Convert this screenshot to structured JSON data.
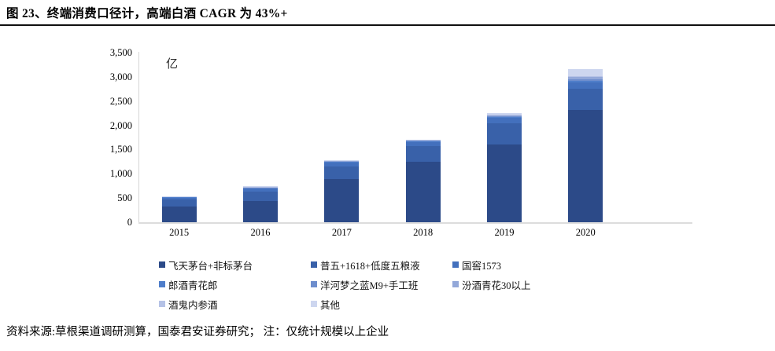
{
  "figure": {
    "title": "图 23、终端消费口径计，高端白酒 CAGR 为 43%+",
    "source_note": "资料来源:草根渠道调研测算，国泰君安证券研究；  注：仅统计规模以上企业"
  },
  "chart_data": {
    "type": "bar",
    "stacked": true,
    "title": "",
    "unit_label": "亿",
    "xlabel": "",
    "ylabel": "亿",
    "ylim": [
      0,
      3500
    ],
    "y_ticks": [
      "0",
      "500",
      "1,000",
      "1,500",
      "2,000",
      "2,500",
      "3,000",
      "3,500"
    ],
    "grid": false,
    "legend_position": "bottom",
    "categories": [
      "2015",
      "2016",
      "2017",
      "2018",
      "2019",
      "2020"
    ],
    "totals_approx": [
      534,
      753,
      1276,
      1710,
      2250,
      3153
    ],
    "series": [
      {
        "name": "飞天茅台+非标茅台",
        "color": "#2C4A88",
        "values": [
          325,
          440,
          890,
          1255,
          1610,
          2310
        ]
      },
      {
        "name": "普五+1618+低度五粮液",
        "color": "#3961A9",
        "values": [
          150,
          200,
          260,
          310,
          430,
          440
        ]
      },
      {
        "name": "国窖1573",
        "color": "#4370BD",
        "values": [
          35,
          55,
          85,
          95,
          120,
          135
        ]
      },
      {
        "name": "郎酒青花郎",
        "color": "#4F7ECA",
        "values": [
          5,
          8,
          10,
          14,
          20,
          35
        ]
      },
      {
        "name": "洋河梦之蓝M9+手工班",
        "color": "#6E8ECD",
        "values": [
          4,
          6,
          8,
          10,
          15,
          28
        ]
      },
      {
        "name": "汾酒青花30以上",
        "color": "#93A8D9",
        "values": [
          4,
          8,
          8,
          10,
          15,
          50
        ]
      },
      {
        "name": "酒鬼内参酒",
        "color": "#B5C2E6",
        "values": [
          3,
          6,
          5,
          6,
          10,
          25
        ]
      },
      {
        "name": "其他",
        "color": "#CDD6EF",
        "values": [
          8,
          30,
          10,
          10,
          30,
          130
        ]
      }
    ]
  }
}
